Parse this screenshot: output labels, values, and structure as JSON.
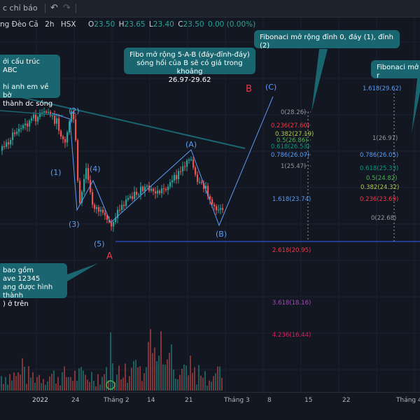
{
  "toolbar": {
    "indicators_label": "c chỉ báo",
    "undo_icon": "undo-icon",
    "redo_icon": "redo-icon"
  },
  "legend": {
    "symbol": "ng Đèo Cả",
    "interval": "2h",
    "exchange": "HSX",
    "o_label": "O",
    "o_value": "23.50",
    "h_label": "H",
    "h_value": "23.65",
    "l_label": "L",
    "l_value": "23.40",
    "c_label": "C",
    "c_value": "23.50",
    "change": "0.00 (0.00%)"
  },
  "annotations": {
    "abc_note": "ới cấu trúc ABC\n\nhi anh em về bờ\nthành dc sóng",
    "fibo_b_note": "Fibo mở rộng 5-A-B (đáy-đỉnh-đáy)\nsóng hồi của B sẽ có giá trong khoảng\n 26.97-29.62",
    "fibo_c_note": "Fibonaci mở rộng đỉnh 0, đáy (1), đỉnh (2)",
    "fibo_right_note": "Fibonaci mở r",
    "wave_note": "bao gồm\nave 12345\nang được hình thành\n) ở trên"
  },
  "waves": {
    "w1": "(1)",
    "w2": "(2)",
    "w3": "(3)",
    "w4": "(4)",
    "w5": "(5)",
    "wA": "(A)",
    "wB": "(B)",
    "wC": "(C)",
    "bigA": "A",
    "bigB": "B"
  },
  "fibo_left": [
    {
      "label": "0(28.26)",
      "color": "#9598a1"
    },
    {
      "label": "0.236(27.60)",
      "color": "#f23645"
    },
    {
      "label": "0.382(27.19)",
      "color": "#b2c94f"
    },
    {
      "label": "0.5(26.86)",
      "color": "#4caf50"
    },
    {
      "label": "0.618(26.53)",
      "color": "#089981"
    },
    {
      "label": "0.786(26.07)",
      "color": "#5b9cf6"
    },
    {
      "label": "1(25.47)",
      "color": "#9598a1"
    },
    {
      "label": "1.618(23.74)",
      "color": "#5b9cf6"
    },
    {
      "label": "2.618(20.95)",
      "color": "#f23645"
    },
    {
      "label": "3.618(18.16)",
      "color": "#ab47bc"
    },
    {
      "label": "4.236(16.44)",
      "color": "#e91e63"
    }
  ],
  "fibo_right": [
    {
      "label": "1.618(29.62)",
      "color": "#5b9cf6"
    },
    {
      "label": "1(26.97)",
      "color": "#9598a1"
    },
    {
      "label": "0.786(26.05)",
      "color": "#5b9cf6"
    },
    {
      "label": "0.618(25.33)",
      "color": "#089981"
    },
    {
      "label": "0.5(24.82)",
      "color": "#4caf50"
    },
    {
      "label": "0.382(24.32)",
      "color": "#b2c94f"
    },
    {
      "label": "0.236(23.69)",
      "color": "#f23645"
    },
    {
      "label": "0(22.68)",
      "color": "#9598a1"
    }
  ],
  "xaxis": {
    "ticks": [
      "2022",
      "24",
      "Tháng 2",
      "14",
      "21",
      "Tháng 3",
      "8",
      "15",
      "22",
      "Tháng 4"
    ]
  },
  "colors": {
    "up": "#26a69a",
    "down": "#ef5350",
    "wave_label": "#5b9cf6",
    "wave_line": "#5b9cf6",
    "trend_line": "#1a6670",
    "callout_bg": "#1a6670"
  }
}
